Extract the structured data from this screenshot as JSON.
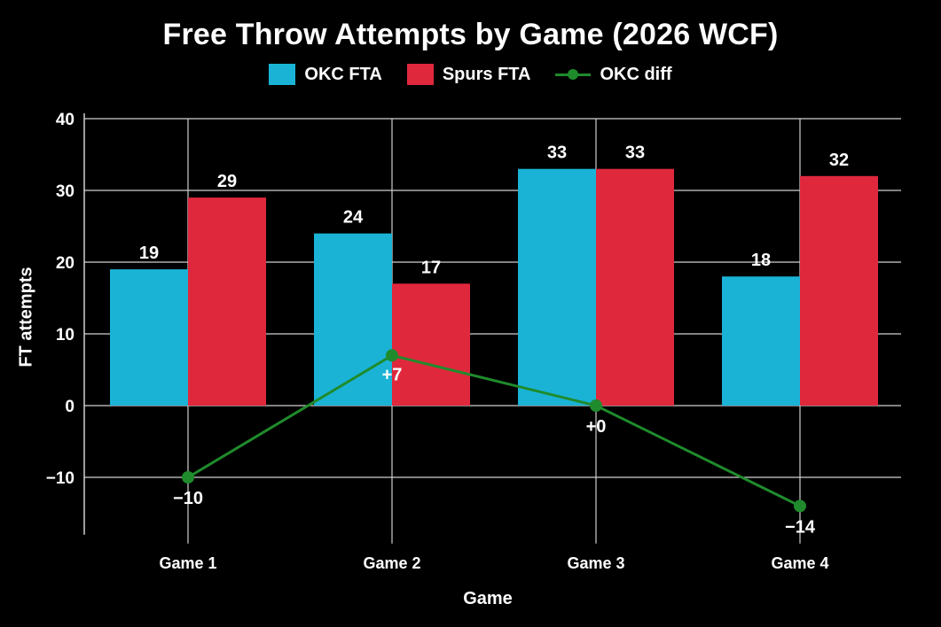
{
  "chart_data": {
    "type": "bar",
    "title": "Free Throw Attempts by Game (2026 WCF)",
    "xlabel": "Game",
    "ylabel": "FT attempts",
    "categories": [
      "Game 1",
      "Game 2",
      "Game 3",
      "Game 4"
    ],
    "series": [
      {
        "name": "OKC FTA",
        "type": "bar",
        "color": "#1ab3d6",
        "values": [
          19,
          24,
          33,
          18
        ],
        "labels": [
          "19",
          "24",
          "33",
          "18"
        ]
      },
      {
        "name": "Spurs FTA",
        "type": "bar",
        "color": "#e0283d",
        "values": [
          29,
          17,
          33,
          32
        ],
        "labels": [
          "29",
          "17",
          "33",
          "32"
        ]
      },
      {
        "name": "OKC diff",
        "type": "line",
        "color": "#1f8b2c",
        "values": [
          -10,
          7,
          0,
          -14
        ],
        "labels": [
          "−10",
          "+7",
          "+0",
          "−14"
        ]
      }
    ],
    "ylim": [
      -18,
      40
    ],
    "yticks": [
      40,
      30,
      20,
      10,
      0,
      -10
    ],
    "ytick_labels": [
      "40",
      "30",
      "20",
      "10",
      "0",
      "−10"
    ],
    "grid": true,
    "legend_position": "top-center"
  }
}
